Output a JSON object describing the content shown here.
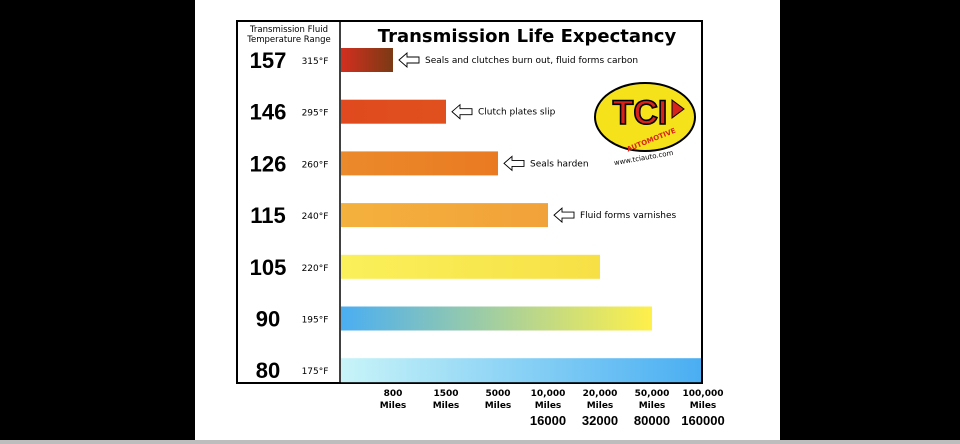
{
  "chart_data": {
    "type": "bar",
    "orientation": "horizontal",
    "title": "Transmission Life Expectancy",
    "row_header": [
      "Transmission Fluid",
      "Temperature Range"
    ],
    "rows": [
      {
        "celsius": "157",
        "fahrenheit": "315°F",
        "life_miles": 800,
        "annotation": "Seals and clutches burn out, fluid forms carbon",
        "color_start": "#d32f1f",
        "color_end": "#7a3a14"
      },
      {
        "celsius": "146",
        "fahrenheit": "295°F",
        "life_miles": 1500,
        "annotation": "Clutch plates slip",
        "color_start": "#e04a1e",
        "color_end": "#e0501e"
      },
      {
        "celsius": "126",
        "fahrenheit": "260°F",
        "life_miles": 5000,
        "annotation": "Seals harden",
        "color_start": "#eb8a2a",
        "color_end": "#ea7a22"
      },
      {
        "celsius": "115",
        "fahrenheit": "240°F",
        "life_miles": 10000,
        "annotation": "Fluid forms varnishes",
        "color_start": "#f4b13c",
        "color_end": "#f2a23a"
      },
      {
        "celsius": "105",
        "fahrenheit": "220°F",
        "life_miles": 20000,
        "annotation": "",
        "color_start": "#faf05a",
        "color_end": "#f7e046"
      },
      {
        "celsius": "90",
        "fahrenheit": "195°F",
        "life_miles": 50000,
        "annotation": "",
        "color_start": "#4aaef2",
        "color_end": "#fff04a"
      },
      {
        "celsius": "80",
        "fahrenheit": "175°F",
        "life_miles": 100000,
        "annotation": "",
        "color_start": "#c8f4f8",
        "color_end": "#4aaef2"
      }
    ],
    "x_ticks": [
      {
        "value": 800,
        "line1": "800",
        "line2": "Miles",
        "km": ""
      },
      {
        "value": 1500,
        "line1": "1500",
        "line2": "Miles",
        "km": ""
      },
      {
        "value": 5000,
        "line1": "5000",
        "line2": "Miles",
        "km": ""
      },
      {
        "value": 10000,
        "line1": "10,000",
        "line2": "Miles",
        "km": "16000"
      },
      {
        "value": 20000,
        "line1": "20,000",
        "line2": "Miles",
        "km": "32000"
      },
      {
        "value": 50000,
        "line1": "50,000",
        "line2": "Miles",
        "km": "80000"
      },
      {
        "value": 100000,
        "line1": "100,000",
        "line2": "Miles",
        "km": "160000"
      }
    ],
    "x_scale": "ordinal",
    "grid": false,
    "legend": "none"
  },
  "logo": {
    "brand": "TCI",
    "sub": "AUTOMOTIVE",
    "url": "www.tciauto.com",
    "colors": {
      "fill": "#f6e21a",
      "text": "#d8231b",
      "outline": "#000000"
    }
  }
}
